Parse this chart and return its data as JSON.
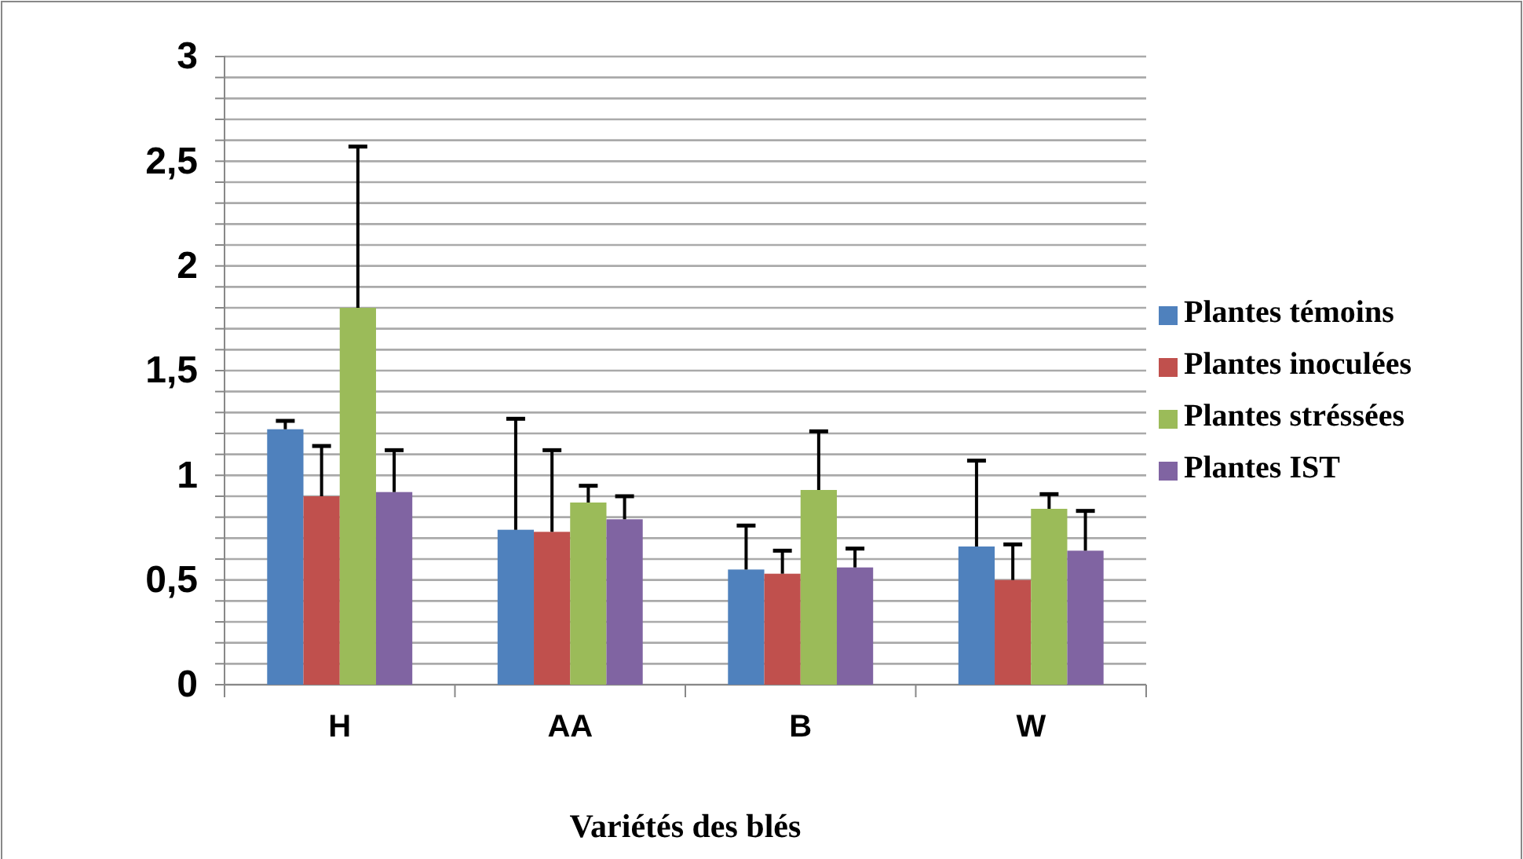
{
  "chart_data": {
    "type": "bar",
    "xlabel": "Variétés des blés",
    "categories": [
      "H",
      "AA",
      "B",
      "W"
    ],
    "series": [
      {
        "name": "Plantes témoins",
        "color": "#4f81bd",
        "values": [
          1.22,
          0.74,
          0.55,
          0.66
        ],
        "errors": [
          [
            1.22,
            1.26
          ],
          [
            0.74,
            1.27
          ],
          [
            0.55,
            0.76
          ],
          [
            0.66,
            1.07
          ]
        ]
      },
      {
        "name": "Plantes inoculées",
        "color": "#c0504d",
        "values": [
          0.9,
          0.73,
          0.53,
          0.5
        ],
        "errors": [
          [
            0.9,
            1.14
          ],
          [
            0.73,
            1.12
          ],
          [
            0.53,
            0.64
          ],
          [
            0.5,
            0.67
          ]
        ]
      },
      {
        "name": "Plantes stréssées",
        "color": "#9bbb59",
        "values": [
          1.8,
          0.87,
          0.93,
          0.84
        ],
        "errors": [
          [
            1.8,
            2.57
          ],
          [
            0.87,
            0.95
          ],
          [
            0.93,
            1.21
          ],
          [
            0.84,
            0.91
          ]
        ]
      },
      {
        "name": "Plantes IST",
        "color": "#8064a2",
        "values": [
          0.92,
          0.79,
          0.56,
          0.64
        ],
        "errors": [
          [
            0.92,
            1.12
          ],
          [
            0.79,
            0.9
          ],
          [
            0.56,
            0.65
          ],
          [
            0.64,
            0.83
          ]
        ]
      }
    ],
    "ylim": [
      0,
      3
    ],
    "yticks": [
      0,
      {
        "value": 0.1,
        "label": null
      },
      {
        "value": 0.2,
        "label": null
      },
      {
        "value": 0.3,
        "label": null
      },
      {
        "value": 0.4,
        "label": null
      },
      {
        "value": 0.5,
        "label": "0,5"
      },
      {
        "value": 0.6,
        "label": null
      },
      {
        "value": 0.7,
        "label": null
      },
      {
        "value": 0.8,
        "label": null
      },
      {
        "value": 0.9,
        "label": null
      },
      1,
      {
        "value": 1.1,
        "label": null
      },
      {
        "value": 1.2,
        "label": null
      },
      {
        "value": 1.3,
        "label": null
      },
      {
        "value": 1.4,
        "label": null
      },
      {
        "value": 1.5,
        "label": "1,5"
      },
      {
        "value": 1.6,
        "label": null
      },
      {
        "value": 1.7,
        "label": null
      },
      {
        "value": 1.8,
        "label": null
      },
      {
        "value": 1.9,
        "label": null
      },
      2,
      {
        "value": 2.1,
        "label": null
      },
      {
        "value": 2.2,
        "label": null
      },
      {
        "value": 2.3,
        "label": null
      },
      {
        "value": 2.4,
        "label": null
      },
      {
        "value": 2.5,
        "label": "2,5"
      },
      {
        "value": 2.6,
        "label": null
      },
      {
        "value": 2.7,
        "label": null
      },
      {
        "value": 2.8,
        "label": null
      },
      {
        "value": 2.9,
        "label": null
      },
      3
    ],
    "grid": "y",
    "legend": "right"
  }
}
